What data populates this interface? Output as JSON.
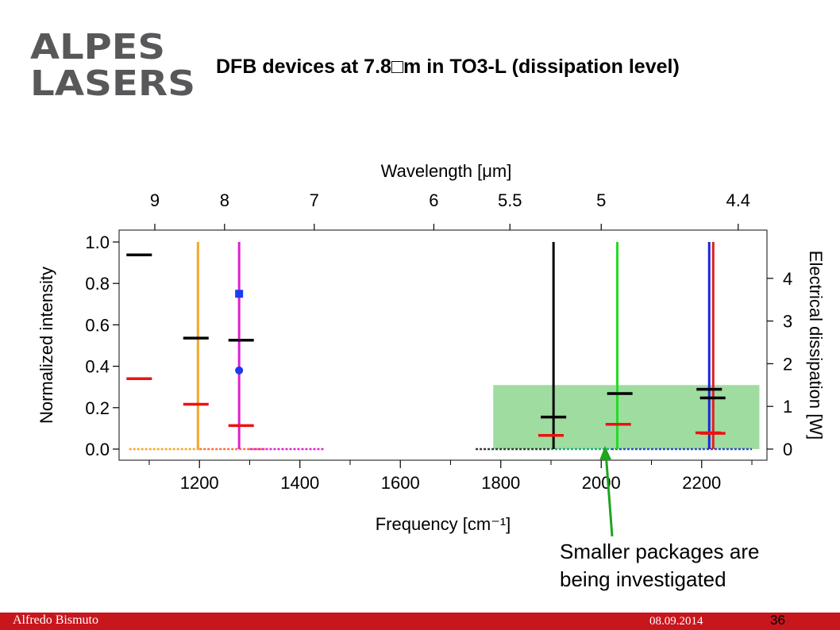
{
  "logo": {
    "line1": "ALPES",
    "line2": "LASERS",
    "brand_gray": "#58585a",
    "brand_red": "#c8161d"
  },
  "slide": {
    "title": "DFB devices at 7.8□m in TO3-L (dissipation level)"
  },
  "annotation": {
    "line1": "Smaller packages are",
    "line2": "being investigated"
  },
  "footer": {
    "author": "Alfredo Bismuto",
    "date": "08.09.2014",
    "page": "36",
    "color": "#c8161d"
  },
  "chart_data": {
    "type": "scatter",
    "xlabel_bottom": "Frequency [cm⁻¹]",
    "xlabel_top": "Wavelength [μm]",
    "ylabel_left": "Normalized intensity",
    "ylabel_right": "Electrical dissipation [W]",
    "xlim": [
      1040,
      2330
    ],
    "ylim_left": [
      0,
      1.0
    ],
    "ylim_right": [
      0,
      4.9
    ],
    "x_ticks": [
      1200,
      1400,
      1600,
      1800,
      2000,
      2200
    ],
    "y_ticks_left": [
      "0.0",
      "0.2",
      "0.4",
      "0.6",
      "0.8",
      "1.0"
    ],
    "y_ticks_right": [
      0,
      1,
      2,
      3,
      4
    ],
    "top_ticks": [
      {
        "label": "9",
        "wavenumber": 1111.1
      },
      {
        "label": "8",
        "wavenumber": 1250
      },
      {
        "label": "7",
        "wavenumber": 1428.6
      },
      {
        "label": "6",
        "wavenumber": 1666.7
      },
      {
        "label": "5.5",
        "wavenumber": 1818.2
      },
      {
        "label": "5",
        "wavenumber": 2000
      },
      {
        "label": "4.4",
        "wavenumber": 2272.7
      }
    ],
    "spectral_lines": [
      {
        "x": 1197,
        "y": 1.0,
        "color": "#f5a623"
      },
      {
        "x": 1279,
        "y": 1.0,
        "color": "#e020d0"
      },
      {
        "x": 1905,
        "y": 1.0,
        "color": "#000000"
      },
      {
        "x": 2032,
        "y": 1.0,
        "color": "#22dd22"
      },
      {
        "x": 2215,
        "y": 1.0,
        "color": "#2222dd"
      },
      {
        "x": 2223,
        "y": 1.0,
        "color": "#dd2222"
      }
    ],
    "baseline_spans": [
      {
        "from": 1060,
        "to": 1200,
        "color": "#f5a623"
      },
      {
        "from": 1200,
        "to": 1330,
        "color": "#ff6a3d"
      },
      {
        "from": 1300,
        "to": 1450,
        "color": "#e020d0"
      },
      {
        "from": 1750,
        "to": 1900,
        "color": "#333333"
      },
      {
        "from": 1900,
        "to": 2020,
        "color": "#22aa88"
      },
      {
        "from": 2020,
        "to": 2300,
        "color": "#3344cc"
      }
    ],
    "dissipation_markers_black_W": [
      {
        "x": 1080,
        "y": 4.55
      },
      {
        "x": 1193,
        "y": 2.6
      },
      {
        "x": 1283,
        "y": 2.55
      },
      {
        "x": 1905,
        "y": 0.75
      },
      {
        "x": 2037,
        "y": 1.3
      },
      {
        "x": 2215,
        "y": 1.4
      },
      {
        "x": 2222,
        "y": 1.2
      }
    ],
    "dissipation_markers_red_W": [
      {
        "x": 1080,
        "y": 1.65
      },
      {
        "x": 1193,
        "y": 1.05
      },
      {
        "x": 1283,
        "y": 0.55
      },
      {
        "x": 1900,
        "y": 0.32
      },
      {
        "x": 2034,
        "y": 0.58
      },
      {
        "x": 2213,
        "y": 0.38
      },
      {
        "x": 2222,
        "y": 0.37
      }
    ],
    "blue_points": [
      {
        "x": 1279,
        "y": 0.75,
        "shape": "square"
      },
      {
        "x": 1279,
        "y": 0.38,
        "shape": "circle"
      }
    ],
    "highlight_region": {
      "x_from": 1785,
      "x_to": 2315,
      "y_from_W": 0,
      "y_to_W": 1.5,
      "color": "#9fdca0"
    }
  }
}
